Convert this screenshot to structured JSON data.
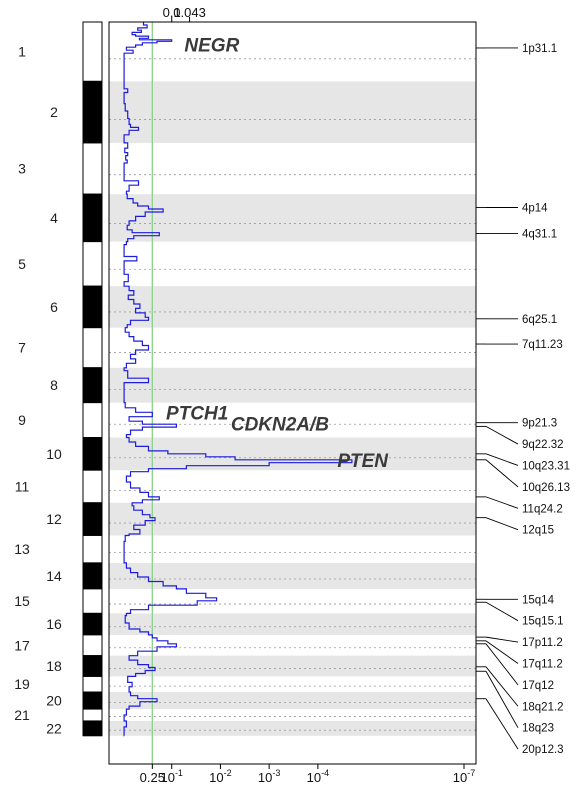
{
  "chart_data": {
    "type": "line",
    "colors": {
      "signal": "#1c1cdd",
      "threshold": "#8fd18f",
      "band_shade": "#e6e6e6",
      "frame": "#000000"
    },
    "x_scale": "log, decreasing q-value to the right",
    "top_ticks": [
      {
        "value": 0.043,
        "label": "0.043"
      },
      {
        "value": 0.1,
        "label": "0.1"
      }
    ],
    "bottom_ticks": [
      {
        "value": 0.25,
        "label": "0.25"
      },
      {
        "value": 0.1,
        "label": "10^-1",
        "base": "10",
        "exp": "-1"
      },
      {
        "value": 0.01,
        "label": "10^-2",
        "base": "10",
        "exp": "-2"
      },
      {
        "value": 0.001,
        "label": "10^-3",
        "base": "10",
        "exp": "-3"
      },
      {
        "value": 0.0001,
        "label": "10^-4",
        "base": "10",
        "exp": "-4"
      },
      {
        "value": 1e-07,
        "label": "10^-7",
        "base": "10",
        "exp": "-7"
      }
    ],
    "threshold_q": 0.25,
    "chromosomes": [
      {
        "label": "1",
        "start": 0.0,
        "end": 0.08
      },
      {
        "label": "2",
        "start": 0.08,
        "end": 0.163
      },
      {
        "label": "3",
        "start": 0.163,
        "end": 0.232
      },
      {
        "label": "4",
        "start": 0.232,
        "end": 0.296
      },
      {
        "label": "5",
        "start": 0.296,
        "end": 0.356
      },
      {
        "label": "6",
        "start": 0.356,
        "end": 0.412
      },
      {
        "label": "7",
        "start": 0.412,
        "end": 0.466
      },
      {
        "label": "8",
        "start": 0.466,
        "end": 0.513
      },
      {
        "label": "9",
        "start": 0.513,
        "end": 0.56
      },
      {
        "label": "10",
        "start": 0.56,
        "end": 0.604
      },
      {
        "label": "11",
        "start": 0.604,
        "end": 0.648
      },
      {
        "label": "12",
        "start": 0.648,
        "end": 0.692
      },
      {
        "label": "13",
        "start": 0.692,
        "end": 0.729
      },
      {
        "label": "14",
        "start": 0.729,
        "end": 0.764
      },
      {
        "label": "15",
        "start": 0.764,
        "end": 0.797
      },
      {
        "label": "16",
        "start": 0.797,
        "end": 0.826
      },
      {
        "label": "17",
        "start": 0.826,
        "end": 0.854
      },
      {
        "label": "18",
        "start": 0.854,
        "end": 0.882
      },
      {
        "label": "19",
        "start": 0.882,
        "end": 0.903
      },
      {
        "label": "20",
        "start": 0.903,
        "end": 0.926
      },
      {
        "label": "21",
        "start": 0.926,
        "end": 0.942
      },
      {
        "label": "22",
        "start": 0.942,
        "end": 0.962
      }
    ],
    "peaks": [
      {
        "label": "1p31.1",
        "pos": 0.035
      },
      {
        "label": "4p14",
        "pos": 0.25
      },
      {
        "label": "4q31.1",
        "pos": 0.285
      },
      {
        "label": "6q25.1",
        "pos": 0.4
      },
      {
        "label": "7q11.23",
        "pos": 0.434
      },
      {
        "label": "9p21.3",
        "pos": 0.54
      },
      {
        "label": "9q22.32",
        "pos": 0.545
      },
      {
        "label": "10q23.31",
        "pos": 0.582
      },
      {
        "label": "10q26.13",
        "pos": 0.59
      },
      {
        "label": "11q24.2",
        "pos": 0.64
      },
      {
        "label": "12q15",
        "pos": 0.668
      },
      {
        "label": "15q14",
        "pos": 0.778
      },
      {
        "label": "15q15.1",
        "pos": 0.782
      },
      {
        "label": "17p11.2",
        "pos": 0.829
      },
      {
        "label": "17q11.2",
        "pos": 0.834
      },
      {
        "label": "17q12",
        "pos": 0.838
      },
      {
        "label": "18q21.2",
        "pos": 0.869
      },
      {
        "label": "18q23",
        "pos": 0.875
      },
      {
        "label": "20p12.3",
        "pos": 0.912
      }
    ],
    "genes": [
      {
        "label": "NEGR",
        "pos": 0.03,
        "q": 0.015
      },
      {
        "label": "PTCH1",
        "pos": 0.526,
        "q": 0.03
      },
      {
        "label": "CDKN2A/B",
        "pos": 0.541,
        "q": 0.0006
      },
      {
        "label": "PTEN",
        "pos": 0.59,
        "q": 1.2e-05
      }
    ],
    "signal": [
      [
        0.0,
        0.38
      ],
      [
        0.004,
        0.32
      ],
      [
        0.008,
        0.5
      ],
      [
        0.011,
        0.42
      ],
      [
        0.014,
        0.65
      ],
      [
        0.017,
        0.55
      ],
      [
        0.019,
        0.3
      ],
      [
        0.022,
        0.46
      ],
      [
        0.024,
        0.1
      ],
      [
        0.026,
        0.2
      ],
      [
        0.028,
        0.4
      ],
      [
        0.031,
        0.55
      ],
      [
        0.034,
        0.85
      ],
      [
        0.038,
        0.62
      ],
      [
        0.042,
        0.95
      ],
      [
        0.05,
        0.95
      ],
      [
        0.08,
        0.95
      ],
      [
        0.09,
        0.8
      ],
      [
        0.095,
        0.95
      ],
      [
        0.11,
        0.9
      ],
      [
        0.12,
        0.8
      ],
      [
        0.13,
        0.75
      ],
      [
        0.138,
        0.7
      ],
      [
        0.142,
        0.48
      ],
      [
        0.146,
        0.75
      ],
      [
        0.152,
        0.95
      ],
      [
        0.163,
        0.8
      ],
      [
        0.17,
        0.92
      ],
      [
        0.176,
        0.8
      ],
      [
        0.18,
        0.88
      ],
      [
        0.186,
        0.82
      ],
      [
        0.19,
        0.95
      ],
      [
        0.2,
        0.95
      ],
      [
        0.214,
        0.48
      ],
      [
        0.22,
        0.75
      ],
      [
        0.228,
        0.85
      ],
      [
        0.232,
        0.82
      ],
      [
        0.238,
        0.62
      ],
      [
        0.244,
        0.5
      ],
      [
        0.248,
        0.3
      ],
      [
        0.252,
        0.15
      ],
      [
        0.256,
        0.35
      ],
      [
        0.262,
        0.55
      ],
      [
        0.268,
        0.75
      ],
      [
        0.274,
        0.82
      ],
      [
        0.28,
        0.65
      ],
      [
        0.284,
        0.18
      ],
      [
        0.288,
        0.6
      ],
      [
        0.292,
        0.8
      ],
      [
        0.296,
        0.85
      ],
      [
        0.3,
        0.95
      ],
      [
        0.316,
        0.52
      ],
      [
        0.322,
        0.95
      ],
      [
        0.34,
        0.78
      ],
      [
        0.35,
        0.95
      ],
      [
        0.356,
        0.75
      ],
      [
        0.362,
        0.6
      ],
      [
        0.368,
        0.78
      ],
      [
        0.374,
        0.6
      ],
      [
        0.38,
        0.45
      ],
      [
        0.386,
        0.55
      ],
      [
        0.392,
        0.35
      ],
      [
        0.398,
        0.3
      ],
      [
        0.402,
        0.7
      ],
      [
        0.408,
        0.82
      ],
      [
        0.412,
        0.9
      ],
      [
        0.418,
        0.75
      ],
      [
        0.424,
        0.6
      ],
      [
        0.43,
        0.4
      ],
      [
        0.436,
        0.3
      ],
      [
        0.442,
        0.55
      ],
      [
        0.448,
        0.7
      ],
      [
        0.454,
        0.55
      ],
      [
        0.46,
        0.85
      ],
      [
        0.466,
        0.95
      ],
      [
        0.47,
        0.8
      ],
      [
        0.48,
        0.3
      ],
      [
        0.486,
        0.95
      ],
      [
        0.505,
        0.95
      ],
      [
        0.513,
        0.9
      ],
      [
        0.52,
        0.55
      ],
      [
        0.526,
        0.25
      ],
      [
        0.532,
        0.75
      ],
      [
        0.538,
        0.4
      ],
      [
        0.542,
        0.08
      ],
      [
        0.546,
        0.4
      ],
      [
        0.55,
        0.7
      ],
      [
        0.556,
        0.85
      ],
      [
        0.56,
        0.75
      ],
      [
        0.566,
        0.55
      ],
      [
        0.572,
        0.3
      ],
      [
        0.578,
        0.12
      ],
      [
        0.582,
        0.02
      ],
      [
        0.586,
        0.005
      ],
      [
        0.59,
        2e-05
      ],
      [
        0.594,
        0.001
      ],
      [
        0.598,
        0.05
      ],
      [
        0.602,
        0.3
      ],
      [
        0.606,
        0.7
      ],
      [
        0.612,
        0.85
      ],
      [
        0.62,
        0.7
      ],
      [
        0.628,
        0.45
      ],
      [
        0.634,
        0.3
      ],
      [
        0.64,
        0.18
      ],
      [
        0.644,
        0.4
      ],
      [
        0.648,
        0.65
      ],
      [
        0.652,
        0.6
      ],
      [
        0.658,
        0.4
      ],
      [
        0.664,
        0.28
      ],
      [
        0.668,
        0.22
      ],
      [
        0.672,
        0.35
      ],
      [
        0.678,
        0.6
      ],
      [
        0.684,
        0.45
      ],
      [
        0.69,
        0.75
      ],
      [
        0.692,
        0.9
      ],
      [
        0.7,
        0.95
      ],
      [
        0.71,
        0.95
      ],
      [
        0.72,
        0.95
      ],
      [
        0.729,
        0.85
      ],
      [
        0.736,
        0.7
      ],
      [
        0.742,
        0.5
      ],
      [
        0.748,
        0.3
      ],
      [
        0.754,
        0.15
      ],
      [
        0.76,
        0.08
      ],
      [
        0.764,
        0.05
      ],
      [
        0.77,
        0.02
      ],
      [
        0.776,
        0.012
      ],
      [
        0.78,
        0.03
      ],
      [
        0.786,
        0.3
      ],
      [
        0.792,
        0.7
      ],
      [
        0.797,
        0.85
      ],
      [
        0.8,
        0.9
      ],
      [
        0.81,
        0.75
      ],
      [
        0.818,
        0.45
      ],
      [
        0.822,
        0.3
      ],
      [
        0.826,
        0.25
      ],
      [
        0.83,
        0.2
      ],
      [
        0.834,
        0.12
      ],
      [
        0.838,
        0.08
      ],
      [
        0.842,
        0.2
      ],
      [
        0.848,
        0.5
      ],
      [
        0.854,
        0.75
      ],
      [
        0.86,
        0.5
      ],
      [
        0.866,
        0.3
      ],
      [
        0.87,
        0.22
      ],
      [
        0.874,
        0.35
      ],
      [
        0.878,
        0.55
      ],
      [
        0.882,
        0.8
      ],
      [
        0.89,
        0.65
      ],
      [
        0.896,
        0.75
      ],
      [
        0.903,
        0.7
      ],
      [
        0.908,
        0.5
      ],
      [
        0.912,
        0.2
      ],
      [
        0.916,
        0.45
      ],
      [
        0.922,
        0.75
      ],
      [
        0.926,
        0.85
      ],
      [
        0.934,
        0.95
      ],
      [
        0.942,
        0.85
      ],
      [
        0.95,
        0.95
      ],
      [
        0.962,
        0.95
      ]
    ]
  }
}
